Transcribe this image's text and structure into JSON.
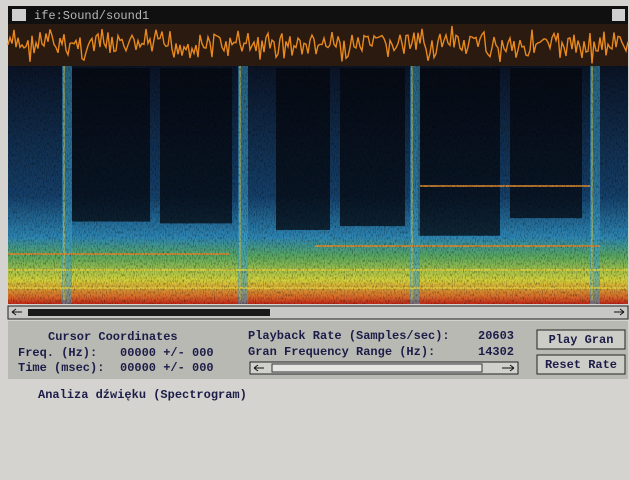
{
  "window": {
    "title": "ife:Sound/sound1"
  },
  "panel": {
    "cursor_heading": "Cursor Coordinates",
    "freq_label": "Freq. (Hz):",
    "freq_value": "00000 +/- 000",
    "time_label": "Time (msec):",
    "time_value": "00000 +/- 000",
    "playback_label": "Playback Rate (Samples/sec):",
    "playback_value": "20603",
    "gran_label": "Gran Frequency Range (Hz):",
    "gran_value": "14302",
    "buttons": [
      "Play Gran",
      "Reset Rate"
    ]
  },
  "caption": "Analiza dźwięku (Spectrogram)"
}
